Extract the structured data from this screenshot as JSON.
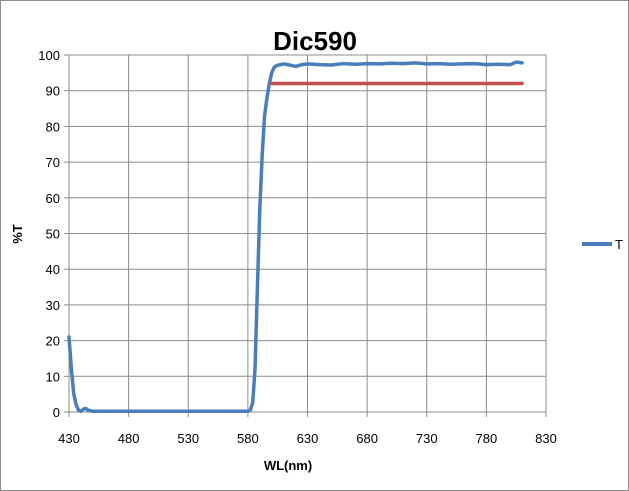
{
  "chart_data": {
    "type": "line",
    "title": "Dic590",
    "xlabel": "WL(nm)",
    "ylabel": "%T",
    "xlim": [
      430,
      830
    ],
    "ylim": [
      0,
      100
    ],
    "x_ticks": [
      430,
      480,
      530,
      580,
      630,
      680,
      730,
      780,
      830
    ],
    "y_ticks": [
      0,
      10,
      20,
      30,
      40,
      50,
      60,
      70,
      80,
      90,
      100
    ],
    "x_tick_labels": [
      "430",
      "480",
      "530",
      "580",
      "630",
      "680",
      "730",
      "780",
      "830"
    ],
    "y_tick_labels": [
      "0",
      "10",
      "20",
      "30",
      "40",
      "50",
      "60",
      "70",
      "80",
      "90",
      "100"
    ],
    "grid": true,
    "legend_position": "right",
    "series": [
      {
        "name": "T",
        "color": "#4a7ebb",
        "x": [
          430,
          432,
          434,
          436,
          438,
          440,
          442,
          444,
          446,
          450,
          460,
          480,
          500,
          530,
          560,
          575,
          580,
          582,
          584,
          586,
          588,
          590,
          592,
          594,
          596,
          598,
          600,
          602,
          604,
          606,
          610,
          615,
          620,
          625,
          630,
          640,
          650,
          660,
          670,
          680,
          690,
          700,
          710,
          720,
          730,
          740,
          750,
          760,
          770,
          780,
          790,
          800,
          805,
          810
        ],
        "values": [
          21,
          12,
          5,
          2,
          0.5,
          0.2,
          0.8,
          1.0,
          0.5,
          0.2,
          0.2,
          0.2,
          0.2,
          0.2,
          0.2,
          0.2,
          0.2,
          0.5,
          2.5,
          12,
          35,
          57,
          72,
          83,
          88,
          92,
          95,
          96.5,
          97,
          97.2,
          97.5,
          97.2,
          96.8,
          97.3,
          97.5,
          97.3,
          97.2,
          97.6,
          97.4,
          97.6,
          97.5,
          97.7,
          97.6,
          97.8,
          97.5,
          97.6,
          97.4,
          97.5,
          97.6,
          97.3,
          97.4,
          97.3,
          98.0,
          97.8
        ]
      },
      {
        "name": "",
        "color": "#c0504d",
        "x": [
          600,
          810
        ],
        "values": [
          92,
          92
        ]
      }
    ]
  }
}
